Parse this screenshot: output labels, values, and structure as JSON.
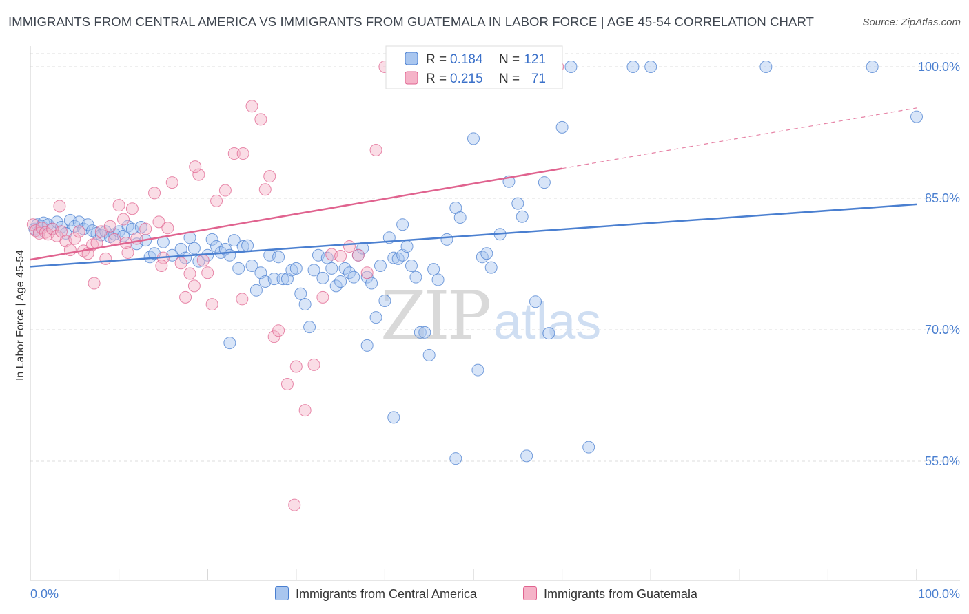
{
  "title": "IMMIGRANTS FROM CENTRAL AMERICA VS IMMIGRANTS FROM GUATEMALA IN LABOR FORCE | AGE 45-54 CORRELATION CHART",
  "source": "Source: ZipAtlas.com",
  "watermark": {
    "zip": "ZIP",
    "atlas": "atlas"
  },
  "colors": {
    "blue": "#4a7fd0",
    "blue_fill": "#a9c6ef",
    "pink": "#e0638f",
    "pink_fill": "#f5b3c8"
  },
  "legend": {
    "r_label": "R =",
    "n_label": "N =",
    "items": [
      {
        "r": "0.184",
        "n": "121"
      },
      {
        "r": "0.215",
        "n": "71"
      }
    ]
  },
  "bottom_legend": [
    {
      "label": "Immigrants from Central America"
    },
    {
      "label": "Immigrants from Guatemala"
    }
  ],
  "chart_data": {
    "type": "scatter",
    "title": "IMMIGRANTS FROM CENTRAL AMERICA VS IMMIGRANTS FROM GUATEMALA IN LABOR FORCE | AGE 45-54 CORRELATION CHART",
    "xlabel": "",
    "ylabel": "In Labor Force | Age 45-54",
    "xlim": [
      0,
      100
    ],
    "ylim": [
      40,
      101.5
    ],
    "x_tick_labels": [
      "0.0%",
      "100.0%"
    ],
    "y_ticks": [
      55,
      70,
      85,
      100
    ],
    "y_tick_labels": [
      "55.0%",
      "70.0%",
      "85.0%",
      "100.0%"
    ],
    "grid": true,
    "legend_position": "top-center",
    "series": [
      {
        "name": "Immigrants from Central America",
        "color": "#4a7fd0",
        "r": 0.184,
        "n": 121,
        "trend": {
          "x": [
            0,
            100
          ],
          "y": [
            77.2,
            84.3
          ]
        },
        "points": [
          [
            0.5,
            81.5
          ],
          [
            0.8,
            82
          ],
          [
            1,
            81.2
          ],
          [
            1.3,
            81.8
          ],
          [
            1.5,
            82.2
          ],
          [
            2,
            82
          ],
          [
            2.5,
            81.5
          ],
          [
            3,
            82.3
          ],
          [
            3.5,
            81.7
          ],
          [
            4,
            81
          ],
          [
            4.5,
            82.5
          ],
          [
            5,
            81.8
          ],
          [
            5.5,
            82.3
          ],
          [
            6,
            81.5
          ],
          [
            6.5,
            82
          ],
          [
            7,
            81.3
          ],
          [
            7.5,
            81
          ],
          [
            8,
            80.8
          ],
          [
            8.5,
            81.2
          ],
          [
            9,
            80.6
          ],
          [
            9.5,
            80.9
          ],
          [
            10,
            81.2
          ],
          [
            10.5,
            80.7
          ],
          [
            11,
            81.8
          ],
          [
            11.5,
            81.5
          ],
          [
            12,
            79.8
          ],
          [
            12.5,
            81.7
          ],
          [
            13,
            80.2
          ],
          [
            13.5,
            78.3
          ],
          [
            14,
            78.7
          ],
          [
            15,
            80
          ],
          [
            16,
            78.5
          ],
          [
            17,
            79.2
          ],
          [
            17.5,
            78.2
          ],
          [
            18,
            80.5
          ],
          [
            18.5,
            79.3
          ],
          [
            19,
            77.8
          ],
          [
            20,
            78.5
          ],
          [
            20.5,
            80.3
          ],
          [
            21,
            79.5
          ],
          [
            21.5,
            78.8
          ],
          [
            22,
            79.2
          ],
          [
            22.5,
            78.5
          ],
          [
            23,
            80.2
          ],
          [
            23.5,
            77
          ],
          [
            24,
            79.5
          ],
          [
            24.5,
            79.6
          ],
          [
            25,
            77.3
          ],
          [
            25.5,
            74.5
          ],
          [
            26,
            76.5
          ],
          [
            26.5,
            75.5
          ],
          [
            27,
            78.5
          ],
          [
            27.5,
            75.8
          ],
          [
            28,
            78.3
          ],
          [
            28.5,
            75.8
          ],
          [
            29,
            75.8
          ],
          [
            29.5,
            76.8
          ],
          [
            30,
            77
          ],
          [
            30.5,
            74.1
          ],
          [
            31,
            72.9
          ],
          [
            31.5,
            70.3
          ],
          [
            32,
            76.8
          ],
          [
            32.5,
            78.5
          ],
          [
            33,
            75.9
          ],
          [
            33.5,
            78.2
          ],
          [
            34,
            77
          ],
          [
            34.5,
            75
          ],
          [
            35,
            75.5
          ],
          [
            35.5,
            77
          ],
          [
            36,
            76.5
          ],
          [
            36.5,
            76
          ],
          [
            37,
            78.5
          ],
          [
            37.5,
            79.3
          ],
          [
            38,
            76
          ],
          [
            38.5,
            75.3
          ],
          [
            39,
            71.4
          ],
          [
            39.5,
            77.3
          ],
          [
            40,
            73.3
          ],
          [
            40.5,
            80.5
          ],
          [
            41,
            78.2
          ],
          [
            41.5,
            78.1
          ],
          [
            42,
            78.5
          ],
          [
            42.5,
            79.5
          ],
          [
            43,
            77.3
          ],
          [
            43.5,
            76
          ],
          [
            44,
            69.7
          ],
          [
            44.5,
            69.7
          ],
          [
            45,
            67.1
          ],
          [
            45.5,
            76.9
          ],
          [
            46,
            75.7
          ],
          [
            47,
            80.3
          ],
          [
            48,
            83.9
          ],
          [
            48.5,
            82.8
          ],
          [
            50,
            91.8
          ],
          [
            50.5,
            65.4
          ],
          [
            51,
            78.3
          ],
          [
            51.5,
            78.7
          ],
          [
            52,
            77.1
          ],
          [
            53,
            80.9
          ],
          [
            54,
            86.9
          ],
          [
            55,
            84.4
          ],
          [
            55.5,
            82.9
          ],
          [
            56,
            55.6
          ],
          [
            57,
            73.2
          ],
          [
            58,
            86.8
          ],
          [
            58.5,
            69.6
          ],
          [
            60,
            93.1
          ],
          [
            61,
            100
          ],
          [
            63,
            56.6
          ],
          [
            68,
            100
          ],
          [
            70,
            100
          ],
          [
            83,
            100
          ],
          [
            95,
            100
          ],
          [
            100,
            94.3
          ],
          [
            52,
            100
          ],
          [
            48,
            55.3
          ],
          [
            38,
            68.2
          ],
          [
            22.5,
            68.5
          ],
          [
            41,
            60
          ],
          [
            42,
            82
          ]
        ]
      },
      {
        "name": "Immigrants from Guatemala",
        "color": "#e0638f",
        "r": 0.215,
        "n": 71,
        "trend": {
          "x": [
            0,
            60
          ],
          "y": [
            78.0,
            88.4
          ]
        },
        "trend_extension": {
          "x": [
            60,
            100
          ],
          "y": [
            88.4,
            95.3
          ]
        },
        "points": [
          [
            0.3,
            82
          ],
          [
            0.6,
            81.3
          ],
          [
            1,
            81
          ],
          [
            1.3,
            81.6
          ],
          [
            1.7,
            81.1
          ],
          [
            2,
            80.9
          ],
          [
            2.5,
            81.5
          ],
          [
            3,
            80.7
          ],
          [
            3.5,
            81.2
          ],
          [
            4,
            80.1
          ],
          [
            4.5,
            79.1
          ],
          [
            5,
            80.4
          ],
          [
            5.5,
            81.2
          ],
          [
            6,
            79
          ],
          [
            6.5,
            78.7
          ],
          [
            7,
            79.7
          ],
          [
            7.5,
            79.9
          ],
          [
            8,
            81.2
          ],
          [
            8.5,
            78.1
          ],
          [
            9,
            81.8
          ],
          [
            9.5,
            80.3
          ],
          [
            10,
            84.2
          ],
          [
            10.5,
            82.6
          ],
          [
            11,
            78.8
          ],
          [
            11.5,
            83.8
          ],
          [
            12,
            80.4
          ],
          [
            13,
            81.5
          ],
          [
            14,
            85.6
          ],
          [
            14.5,
            82.3
          ],
          [
            15,
            78.2
          ],
          [
            15.5,
            81.6
          ],
          [
            16,
            86.8
          ],
          [
            17,
            77.6
          ],
          [
            17.5,
            73.7
          ],
          [
            18,
            76.4
          ],
          [
            18.5,
            75
          ],
          [
            19,
            87.7
          ],
          [
            19.5,
            77.9
          ],
          [
            20,
            76.5
          ],
          [
            20.5,
            72.9
          ],
          [
            21,
            84.7
          ],
          [
            22,
            85.9
          ],
          [
            23,
            90.1
          ],
          [
            24,
            90.1
          ],
          [
            25,
            95.5
          ],
          [
            26,
            94
          ],
          [
            27,
            87.5
          ],
          [
            27.5,
            69.2
          ],
          [
            28,
            69.9
          ],
          [
            29,
            63.8
          ],
          [
            30,
            65.8
          ],
          [
            31,
            60.8
          ],
          [
            32,
            66
          ],
          [
            33,
            73.7
          ],
          [
            34,
            78.6
          ],
          [
            35,
            78.4
          ],
          [
            36,
            79.5
          ],
          [
            37,
            78.5
          ],
          [
            38,
            76.5
          ],
          [
            39,
            90.5
          ],
          [
            40,
            100
          ],
          [
            41,
            100
          ],
          [
            42,
            100
          ],
          [
            43,
            100
          ],
          [
            59.5,
            100
          ],
          [
            29.8,
            50
          ],
          [
            23.9,
            73.5
          ],
          [
            26.5,
            86
          ],
          [
            18.6,
            88.6
          ],
          [
            14.8,
            77.3
          ],
          [
            10.8,
            79.9
          ],
          [
            3.3,
            84.1
          ],
          [
            7.2,
            75.3
          ]
        ]
      }
    ]
  }
}
